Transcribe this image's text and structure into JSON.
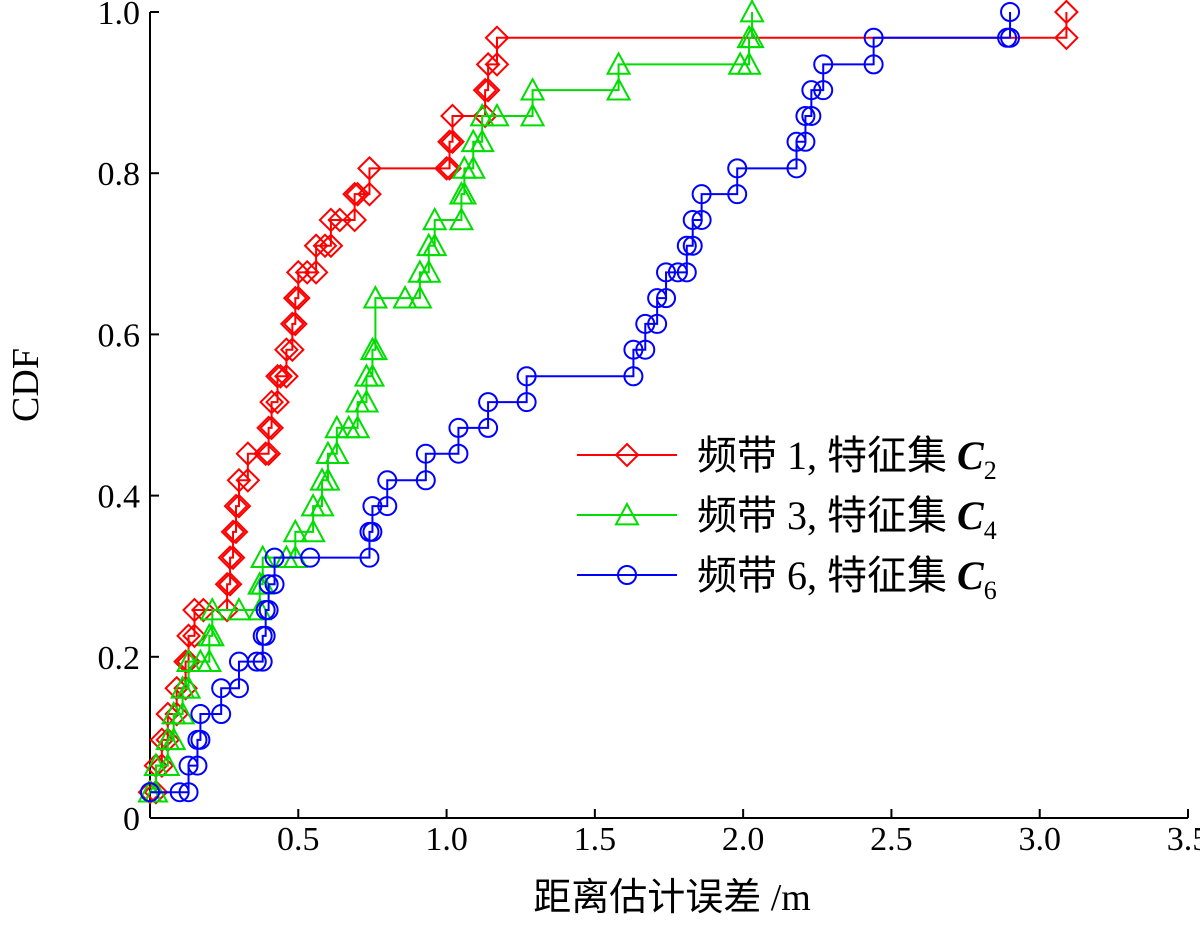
{
  "chart_data": {
    "type": "line",
    "xlabel": "距离估计误差 /m",
    "ylabel": "CDF",
    "xlim": [
      0,
      3.5
    ],
    "ylim": [
      0,
      1.0
    ],
    "x_ticks": [
      0,
      0.5,
      1.0,
      1.5,
      2.0,
      2.5,
      3.0,
      3.5
    ],
    "x_tick_labels": [
      "0",
      "0.5",
      "1.0",
      "1.5",
      "2.0",
      "2.5",
      "3.0",
      "3.5"
    ],
    "y_ticks": [
      0,
      0.2,
      0.4,
      0.6,
      0.8,
      1.0
    ],
    "y_tick_labels": [
      "0",
      "0.2",
      "0.4",
      "0.6",
      "0.8",
      "1.0"
    ],
    "grid": false,
    "legend_position": "center-right",
    "series": [
      {
        "legend_label": "频带 1, 特征集 C",
        "legend_subscript": "2",
        "color": "#ff0000",
        "marker": "diamond",
        "x": [
          0,
          0.02,
          0.04,
          0.06,
          0.09,
          0.12,
          0.13,
          0.15,
          0.18,
          0.26,
          0.27,
          0.28,
          0.29,
          0.3,
          0.33,
          0.39,
          0.4,
          0.41,
          0.43,
          0.44,
          0.46,
          0.48,
          0.49,
          0.5,
          0.53,
          0.56,
          0.59,
          0.61,
          0.64,
          0.69,
          0.7,
          0.74,
          1.0,
          1.01,
          1.02,
          1.13,
          1.14,
          1.17,
          3.09
        ],
        "y": [
          0.032,
          0.065,
          0.097,
          0.129,
          0.161,
          0.194,
          0.226,
          0.258,
          0.258,
          0.29,
          0.323,
          0.355,
          0.387,
          0.419,
          0.452,
          0.452,
          0.484,
          0.516,
          0.548,
          0.548,
          0.581,
          0.613,
          0.645,
          0.677,
          0.677,
          0.71,
          0.71,
          0.742,
          0.742,
          0.774,
          0.774,
          0.806,
          0.806,
          0.839,
          0.871,
          0.903,
          0.935,
          0.968,
          1.0
        ]
      },
      {
        "legend_label": "频带 3, 特征集 C",
        "legend_subscript": "4",
        "color": "#00dd00",
        "marker": "triangle",
        "x": [
          0,
          0.02,
          0.06,
          0.08,
          0.11,
          0.13,
          0.17,
          0.2,
          0.21,
          0.3,
          0.37,
          0.38,
          0.46,
          0.49,
          0.55,
          0.58,
          0.6,
          0.63,
          0.67,
          0.7,
          0.73,
          0.75,
          0.76,
          0.86,
          0.91,
          0.94,
          0.96,
          1.05,
          1.06,
          1.09,
          1.12,
          1.17,
          1.29,
          1.58,
          1.99,
          2.02,
          2.03
        ],
        "y": [
          0.032,
          0.065,
          0.097,
          0.129,
          0.161,
          0.194,
          0.194,
          0.226,
          0.258,
          0.258,
          0.29,
          0.323,
          0.323,
          0.355,
          0.387,
          0.419,
          0.452,
          0.484,
          0.484,
          0.516,
          0.548,
          0.581,
          0.645,
          0.645,
          0.677,
          0.71,
          0.742,
          0.774,
          0.806,
          0.839,
          0.871,
          0.871,
          0.903,
          0.935,
          0.935,
          0.968,
          1.0
        ]
      },
      {
        "legend_label": "频带 6, 特征集 C",
        "legend_subscript": "6",
        "color": "#0000ff",
        "marker": "circle",
        "x": [
          0,
          0.1,
          0.13,
          0.16,
          0.17,
          0.24,
          0.3,
          0.36,
          0.38,
          0.39,
          0.4,
          0.42,
          0.54,
          0.74,
          0.75,
          0.8,
          0.93,
          1.04,
          1.14,
          1.27,
          1.63,
          1.67,
          1.71,
          1.74,
          1.78,
          1.81,
          1.83,
          1.86,
          1.98,
          2.18,
          2.21,
          2.23,
          2.27,
          2.44,
          2.89,
          2.9
        ],
        "y": [
          0.032,
          0.032,
          0.065,
          0.097,
          0.129,
          0.161,
          0.194,
          0.194,
          0.226,
          0.258,
          0.29,
          0.323,
          0.323,
          0.355,
          0.387,
          0.419,
          0.452,
          0.484,
          0.516,
          0.548,
          0.581,
          0.613,
          0.645,
          0.677,
          0.677,
          0.71,
          0.742,
          0.774,
          0.806,
          0.839,
          0.871,
          0.903,
          0.935,
          0.968,
          0.968,
          1.0
        ]
      }
    ]
  }
}
